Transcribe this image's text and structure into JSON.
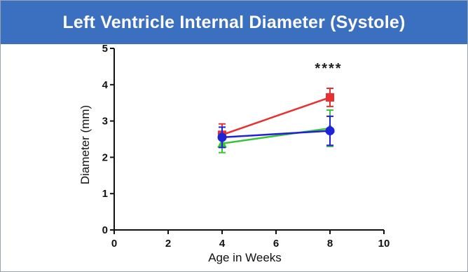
{
  "title": "Left Ventricle Internal Diameter (Systole)",
  "colors": {
    "header": "#3b6fc0",
    "red": "#e83030",
    "green": "#39c23a",
    "blue": "#1f22d6"
  },
  "chart_data": {
    "type": "line",
    "title": "Left Ventricle Internal Diameter (Systole)",
    "xlabel": "Age in Weeks",
    "ylabel": "Diameter (mm)",
    "xlim": [
      0,
      10
    ],
    "ylim": [
      0,
      5
    ],
    "xticks": [
      0,
      2,
      4,
      6,
      8,
      10
    ],
    "yticks": [
      0,
      1,
      2,
      3,
      4,
      5
    ],
    "grid": false,
    "annotations": [
      {
        "text": "****",
        "x": 8,
        "y": 4.4
      }
    ],
    "series": [
      {
        "color": "#e83030",
        "marker": "square",
        "x": [
          4,
          8
        ],
        "y": [
          2.62,
          3.65
        ],
        "err": [
          0.3,
          0.25
        ]
      },
      {
        "color": "#39c23a",
        "marker": "triangle",
        "x": [
          4,
          8
        ],
        "y": [
          2.38,
          2.8
        ],
        "err": [
          0.25,
          0.5
        ]
      },
      {
        "color": "#1f22d6",
        "marker": "circle",
        "x": [
          4,
          8
        ],
        "y": [
          2.55,
          2.73
        ],
        "err": [
          0.28,
          0.4
        ]
      }
    ]
  }
}
